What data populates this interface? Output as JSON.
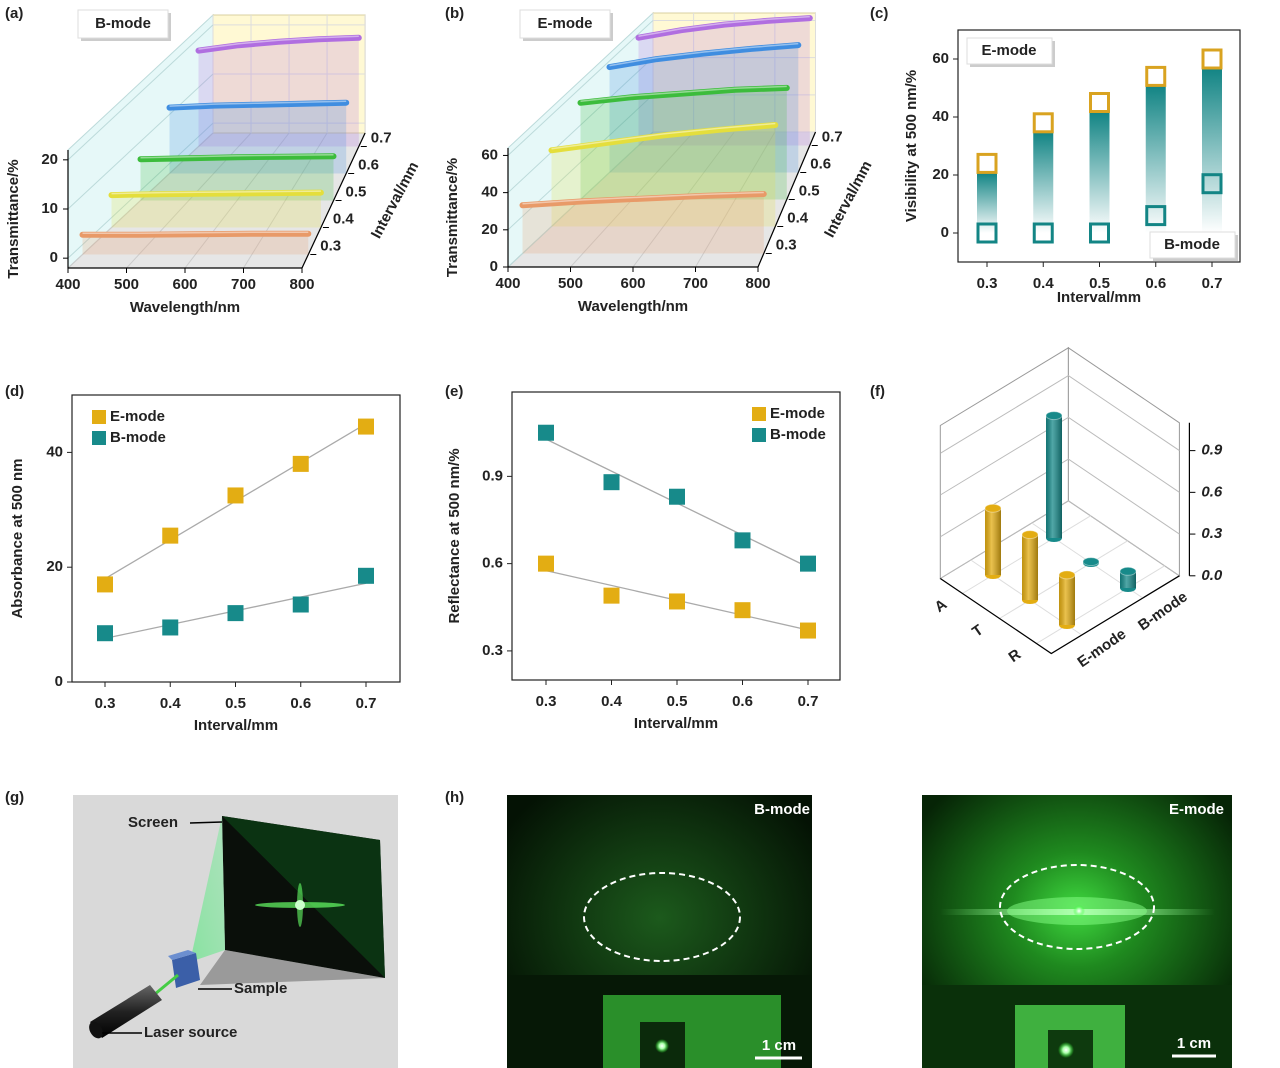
{
  "panel_labels": [
    "(a)",
    "(b)",
    "(c)",
    "(d)",
    "(e)",
    "(f)",
    "(g)",
    "(h)"
  ],
  "chart_data": [
    {
      "type": "line3d",
      "label": "B-mode",
      "xlabel": "Wavelength/nm",
      "ylabel": "Transmittance/%",
      "zlabel": "Interval/mm",
      "xlim": [
        400,
        800
      ],
      "xticks": [
        400,
        500,
        600,
        700,
        800
      ],
      "ylim": [
        -2,
        22
      ],
      "yticks": [
        0,
        10,
        20
      ],
      "x": [
        400,
        500,
        600,
        700,
        800
      ],
      "series": [
        {
          "name": "0.3",
          "color": "#e89a68",
          "values": [
            2,
            2,
            2.1,
            2.2,
            2.2
          ]
        },
        {
          "name": "0.4",
          "color": "#e4de3c",
          "values": [
            4.6,
            4.8,
            4.9,
            5,
            5.1
          ]
        },
        {
          "name": "0.5",
          "color": "#3cbc3c",
          "values": [
            6.4,
            6.6,
            6.8,
            6.9,
            7
          ]
        },
        {
          "name": "0.6",
          "color": "#3f8de0",
          "values": [
            11.4,
            11.8,
            12,
            12.2,
            12.4
          ]
        },
        {
          "name": "0.7",
          "color": "#b06ee0",
          "values": [
            17.5,
            18.6,
            19.3,
            19.8,
            20.1
          ]
        }
      ]
    },
    {
      "type": "line3d",
      "label": "E-mode",
      "xlabel": "Wavelength/nm",
      "ylabel": "Transmittance/%",
      "zlabel": "Interval/mm",
      "xlim": [
        400,
        800
      ],
      "xticks": [
        400,
        500,
        600,
        700,
        800
      ],
      "ylim": [
        0,
        64
      ],
      "yticks": [
        0,
        20,
        40,
        60
      ],
      "x": [
        400,
        500,
        600,
        700,
        800
      ],
      "series": [
        {
          "name": "0.3",
          "color": "#e89a68",
          "values": [
            26,
            28,
            29.5,
            31,
            32
          ]
        },
        {
          "name": "0.4",
          "color": "#e4de3c",
          "values": [
            41,
            45,
            49,
            52,
            54.6
          ]
        },
        {
          "name": "0.5",
          "color": "#3cbc3c",
          "values": [
            52,
            55,
            57,
            59,
            60
          ]
        },
        {
          "name": "0.6",
          "color": "#3f8de0",
          "values": [
            56.7,
            61,
            64,
            66.5,
            68.5
          ]
        },
        {
          "name": "0.7",
          "color": "#b06ee0",
          "values": [
            58,
            62,
            65,
            67,
            68.5
          ]
        }
      ]
    },
    {
      "type": "visibility",
      "xlabel": "Interval/mm",
      "ylabel": "Visibility at 500 nm/%",
      "categories": [
        "0.3",
        "0.4",
        "0.5",
        "0.6",
        "0.7"
      ],
      "ylim": [
        -10,
        70
      ],
      "yticks": [
        0,
        20,
        40,
        60
      ],
      "series": [
        {
          "name": "E-mode",
          "color": "#d9a320",
          "values": [
            24,
            38,
            45,
            54,
            60
          ]
        },
        {
          "name": "B-mode",
          "color": "#138585",
          "values": [
            0,
            0,
            0,
            6,
            17
          ]
        }
      ]
    },
    {
      "type": "marker",
      "xlabel": "Interval/mm",
      "ylabel": "Absorbance at 500 nm",
      "categories": [
        "0.3",
        "0.4",
        "0.5",
        "0.6",
        "0.7"
      ],
      "ylim": [
        0,
        50
      ],
      "yticks": [
        0,
        20,
        40
      ],
      "legend": "upper left",
      "fit": true,
      "series": [
        {
          "name": "E-mode",
          "color": "#e3ad13",
          "values": [
            17,
            25.5,
            32.5,
            38,
            44.5
          ]
        },
        {
          "name": "B-mode",
          "color": "#178a8a",
          "values": [
            8.5,
            9.5,
            12,
            13.5,
            18.5
          ]
        }
      ]
    },
    {
      "type": "marker",
      "xlabel": "Interval/mm",
      "ylabel": "Reflectance at 500 nm/%",
      "categories": [
        "0.3",
        "0.4",
        "0.5",
        "0.6",
        "0.7"
      ],
      "ylim": [
        0.2,
        1.19
      ],
      "yticks": [
        0.3,
        0.6,
        0.9
      ],
      "legend": "upper right",
      "fit": true,
      "series": [
        {
          "name": "E-mode",
          "color": "#e3ad13",
          "values": [
            0.6,
            0.49,
            0.47,
            0.44,
            0.37
          ]
        },
        {
          "name": "B-mode",
          "color": "#178a8a",
          "values": [
            1.05,
            0.88,
            0.83,
            0.68,
            0.6
          ]
        }
      ]
    },
    {
      "type": "bar3d",
      "categories": [
        "A",
        "T",
        "R"
      ],
      "zlim": [
        0,
        1.1
      ],
      "zticks": [
        {
          "value": 0,
          "label": "0.0"
        },
        0.3,
        0.6,
        0.9
      ],
      "series": [
        {
          "name": "E-mode",
          "color": "#e3ad13",
          "values": [
            0.48,
            0.47,
            0.36
          ]
        },
        {
          "name": "B-mode",
          "color": "#178a8a",
          "values": [
            0.88,
            0.01,
            0.12
          ]
        }
      ]
    }
  ],
  "setup": {
    "screen": "Screen",
    "sample": "Sample",
    "laser": "Laser source"
  },
  "photos": [
    {
      "mode": "B-mode",
      "scale": "1 cm"
    },
    {
      "mode": "E-mode",
      "scale": "1 cm"
    }
  ]
}
